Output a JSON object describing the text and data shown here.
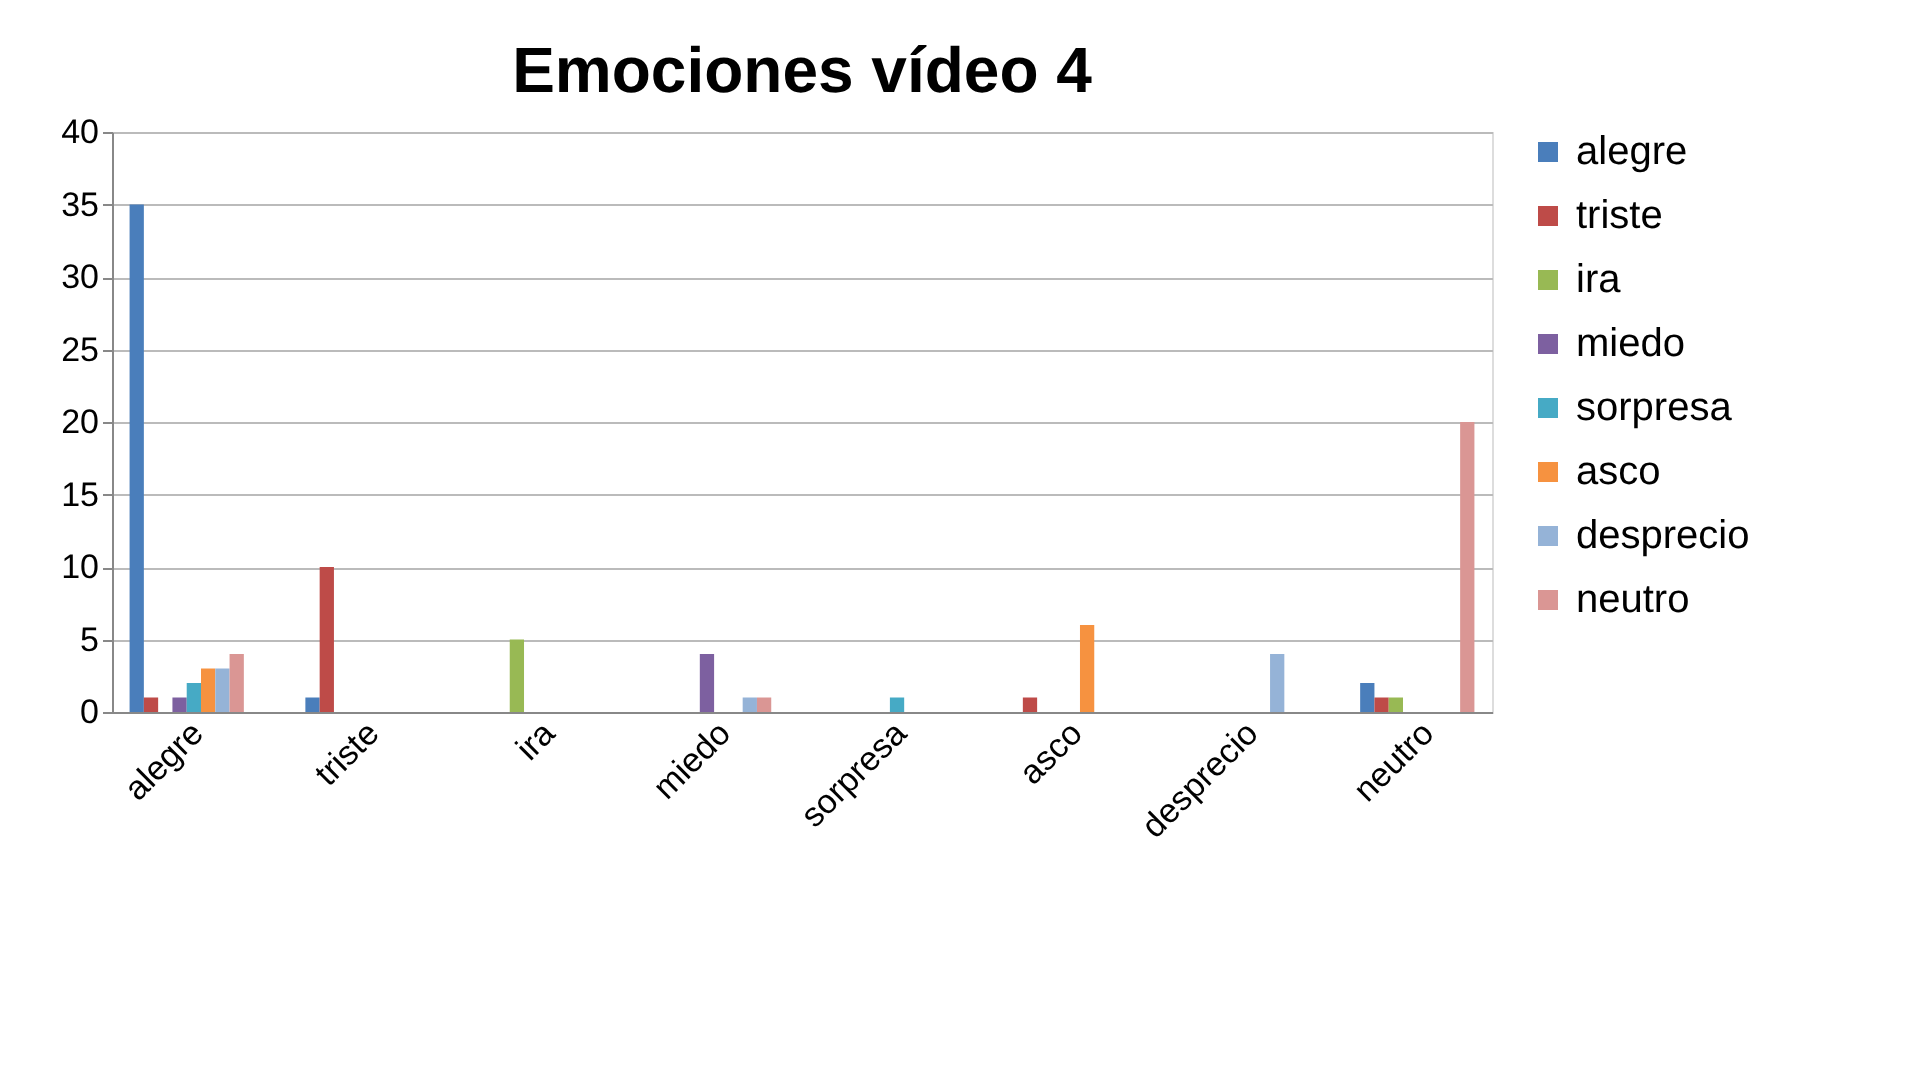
{
  "chart_data": {
    "type": "bar",
    "title": "Emociones  vídeo 4",
    "categories": [
      "alegre",
      "triste",
      "ira",
      "miedo",
      "sorpresa",
      "asco",
      "desprecio",
      "neutro"
    ],
    "series": [
      {
        "name": "alegre",
        "color": "#4a7ebb",
        "values": [
          35,
          1,
          0,
          0,
          0,
          0,
          0,
          2
        ]
      },
      {
        "name": "triste",
        "color": "#be4b48",
        "values": [
          1,
          10,
          0,
          0,
          0,
          1,
          0,
          1
        ]
      },
      {
        "name": "ira",
        "color": "#98b954",
        "values": [
          0,
          0,
          5,
          0,
          0,
          0,
          0,
          1
        ]
      },
      {
        "name": "miedo",
        "color": "#7d60a0",
        "values": [
          1,
          0,
          0,
          4,
          0,
          0,
          0,
          0
        ]
      },
      {
        "name": "sorpresa",
        "color": "#46aac5",
        "values": [
          2,
          0,
          0,
          0,
          1,
          0,
          0,
          0
        ]
      },
      {
        "name": "asco",
        "color": "#f69240",
        "values": [
          3,
          0,
          0,
          0,
          0,
          6,
          0,
          0
        ]
      },
      {
        "name": "desprecio",
        "color": "#95b3d7",
        "values": [
          3,
          0,
          0,
          1,
          0,
          0,
          4,
          0
        ]
      },
      {
        "name": "neutro",
        "color": "#da9694",
        "values": [
          4,
          0,
          0,
          1,
          0,
          0,
          0,
          20
        ]
      }
    ],
    "ylim": [
      0,
      40
    ],
    "yticks": [
      0,
      5,
      10,
      15,
      20,
      25,
      30,
      35,
      40
    ],
    "grid": "y",
    "legend": "right"
  }
}
